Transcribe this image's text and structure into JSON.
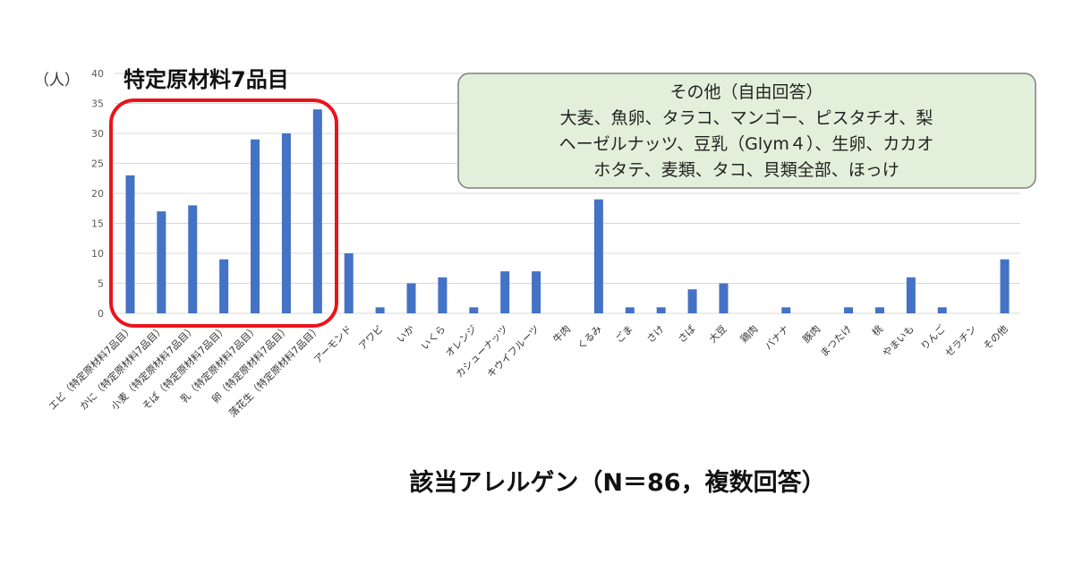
{
  "chart_data": {
    "type": "bar",
    "unit_label": "（人）",
    "highlight_label": "特定原材料7品目",
    "xlabel": "該当アレルゲン（N＝86，複数回答）",
    "ylim": [
      0,
      40
    ],
    "yticks": [
      0,
      5,
      10,
      15,
      20,
      25,
      30,
      35,
      40
    ],
    "grid": true,
    "categories": [
      "エビ（特定原材料7品目）",
      "かに（特定原材料7品目）",
      "小麦（特定原材料7品目）",
      "そば（特定原材料7品目）",
      "乳（特定原材料7品目）",
      "卵（特定原材料7品目）",
      "落花生（特定原材料7品目）",
      "アーモンド",
      "アワビ",
      "いか",
      "いくら",
      "オレンジ",
      "カシューナッツ",
      "キウイフルーツ",
      "牛肉",
      "くるみ",
      "ごま",
      "さけ",
      "さば",
      "大豆",
      "鶏肉",
      "バナナ",
      "豚肉",
      "まつたけ",
      "桃",
      "やまいも",
      "りんご",
      "ゼラチン",
      "その他"
    ],
    "values": [
      23,
      17,
      18,
      9,
      29,
      30,
      34,
      10,
      1,
      5,
      6,
      1,
      7,
      7,
      0,
      19,
      1,
      1,
      4,
      5,
      0,
      1,
      0,
      1,
      1,
      6,
      1,
      0,
      9
    ],
    "annotation": {
      "lines": [
        "その他（自由回答）",
        "大麦、魚卵、タラコ、マンゴー、ピスタチオ、梨",
        "ヘーゼルナッツ、豆乳（Glym４）、生卵、カカオ",
        "ホタテ、麦類、タコ、貝類全部、ほっけ"
      ]
    },
    "colors": {
      "bar": "#4472c4",
      "highlight": "#e8141c",
      "annotation_fill": "#e2efda"
    }
  }
}
